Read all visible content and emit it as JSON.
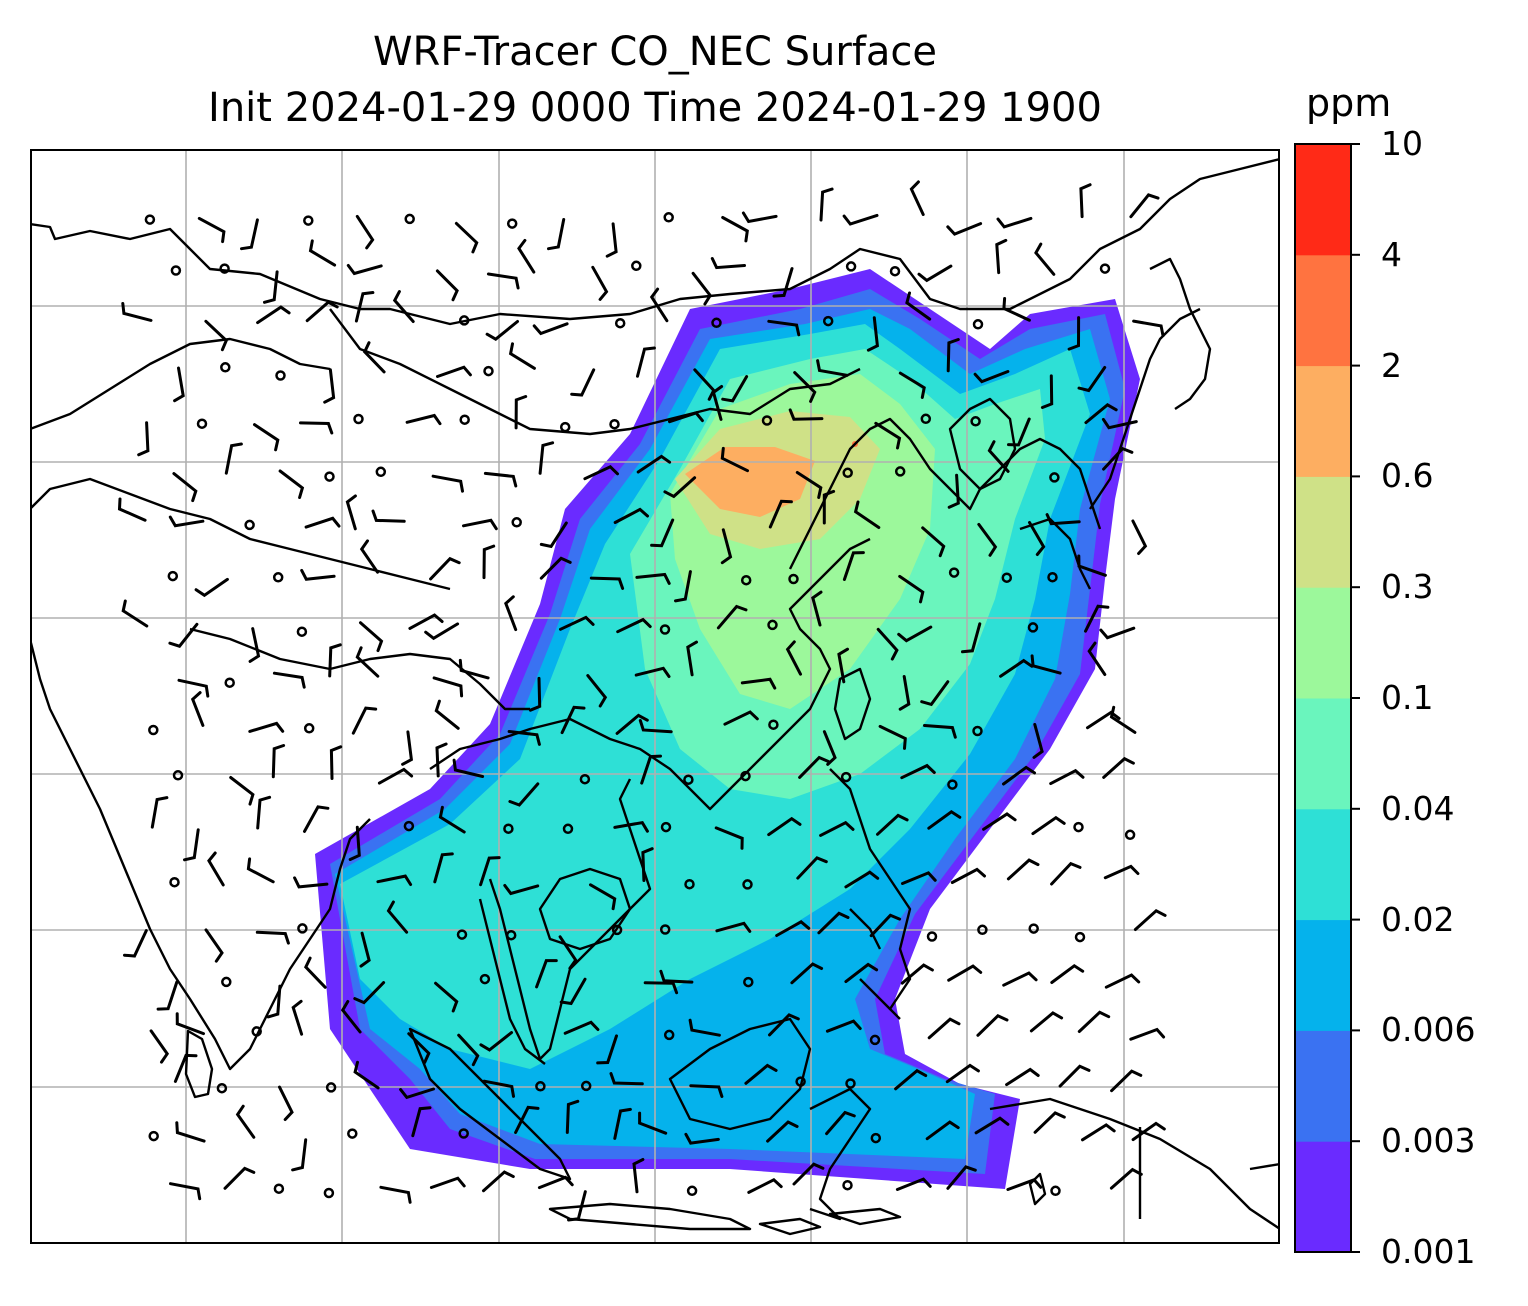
{
  "title": {
    "line1": "WRF-Tracer CO_NEC Surface",
    "line2": "Init 2024-01-29 0000 Time 2024-01-29 1900"
  },
  "colorbar": {
    "unit": "ppm",
    "levels": [
      "0.001",
      "0.003",
      "0.006",
      "0.02",
      "0.04",
      "0.1",
      "0.3",
      "0.6",
      "2",
      "4",
      "10"
    ],
    "colors": [
      "#6a2bff",
      "#3a72f2",
      "#05b2ec",
      "#2ee0d6",
      "#6af5bd",
      "#9cf89b",
      "#cfe187",
      "#fdae61",
      "#ff7340",
      "#ff2a17"
    ]
  },
  "map": {
    "gridlines": true,
    "features": [
      "coastlines",
      "country-borders",
      "wind-barbs",
      "co-tracer-concentration"
    ]
  }
}
